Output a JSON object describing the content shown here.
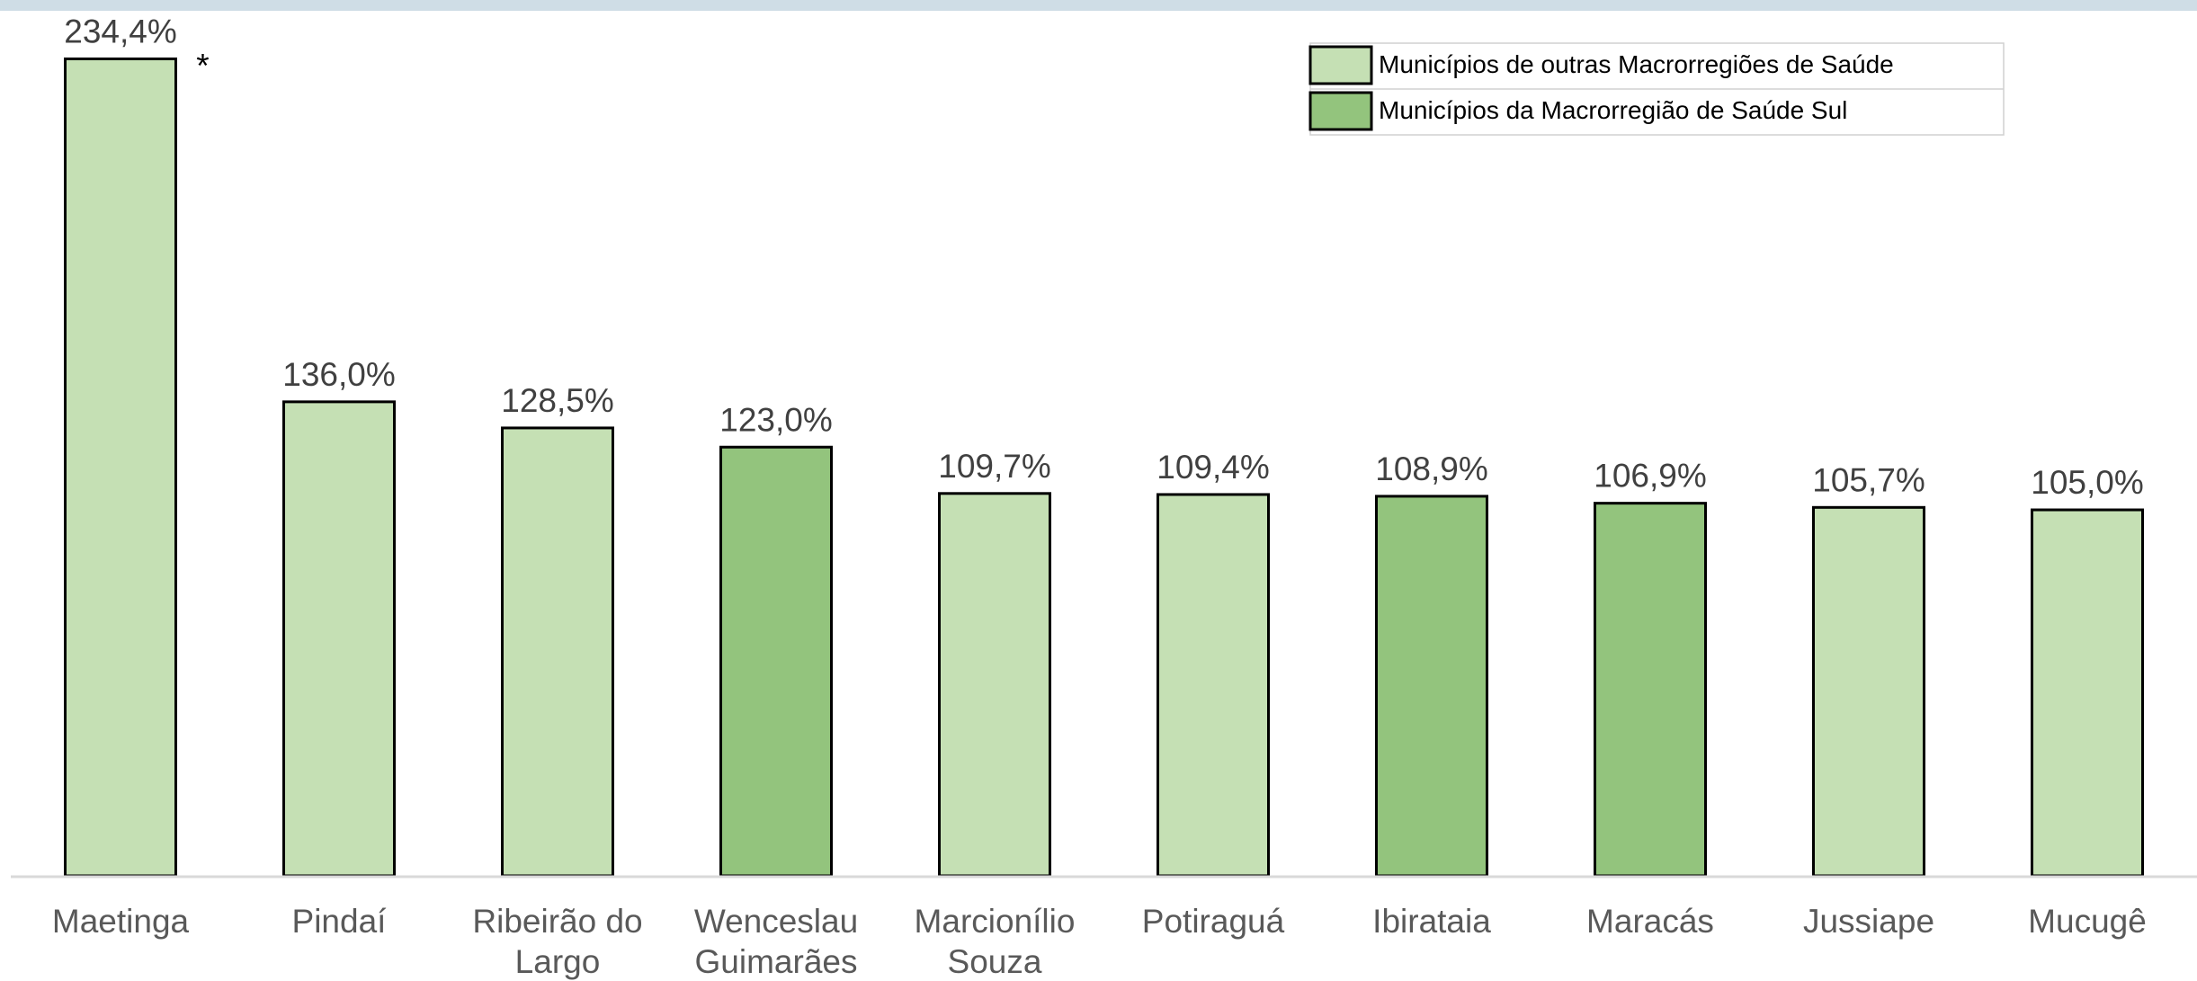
{
  "chart_data": {
    "type": "bar",
    "categories": [
      "Maetinga",
      "Pindaí",
      "Ribeirão do Largo",
      "Wenceslau Guimarães",
      "Marcionílio Souza",
      "Potiraguá",
      "Ibirataia",
      "Maracás",
      "Jussiape",
      "Mucugê"
    ],
    "values": [
      234.4,
      136.0,
      128.5,
      123.0,
      109.7,
      109.4,
      108.9,
      106.9,
      105.7,
      105.0
    ],
    "value_labels": [
      "234,4%",
      "136,0%",
      "128,5%",
      "123,0%",
      "109,7%",
      "109,4%",
      "108,9%",
      "106,9%",
      "105,7%",
      "105,0%"
    ],
    "colors": [
      "#c5e0b4",
      "#c5e0b4",
      "#c5e0b4",
      "#93c47d",
      "#c5e0b4",
      "#c5e0b4",
      "#93c47d",
      "#93c47d",
      "#c5e0b4",
      "#c5e0b4"
    ],
    "annotation": "*",
    "legend": [
      {
        "name": "Municípios de outras Macrorregiões de Saúde",
        "color": "#c5e0b4"
      },
      {
        "name": "Municípios da Macrorregião de Saúde Sul",
        "color": "#93c47d"
      }
    ],
    "ylim": [
      0,
      250
    ]
  }
}
